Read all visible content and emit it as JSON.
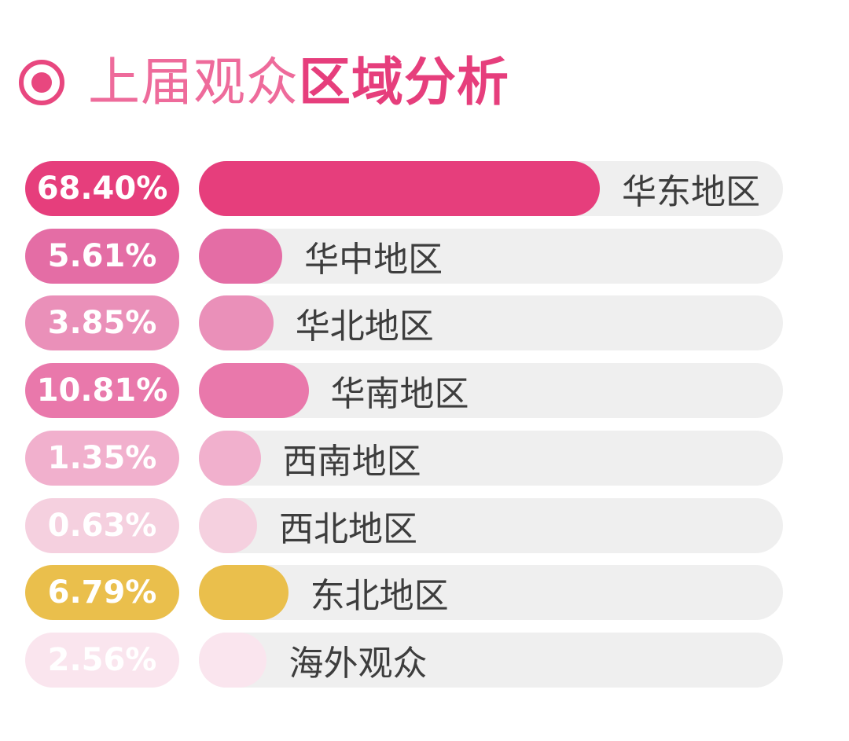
{
  "header": {
    "title_light": "上届观众",
    "title_bold": "区域分析",
    "accent": "#e63e7c"
  },
  "chart_data": {
    "type": "bar",
    "orientation": "horizontal",
    "title": "上届观众区域分析",
    "categories": [
      "华东地区",
      "华中地区",
      "华北地区",
      "华南地区",
      "西南地区",
      "西北地区",
      "东北地区",
      "海外观众"
    ],
    "values": [
      68.4,
      5.61,
      3.85,
      10.81,
      1.35,
      0.63,
      6.79,
      2.56
    ],
    "value_labels": [
      "68.40%",
      "5.61%",
      "3.85%",
      "10.81%",
      "1.35%",
      "0.63%",
      "6.79%",
      "2.56%"
    ],
    "unit": "%",
    "colors": [
      "#e63e7c",
      "#e46da5",
      "#ea90b9",
      "#e978ab",
      "#f1b0cd",
      "#f5d0df",
      "#eabf4c",
      "#fae5ee"
    ],
    "track_color": "#efefef",
    "grid": false,
    "legend": "none"
  }
}
